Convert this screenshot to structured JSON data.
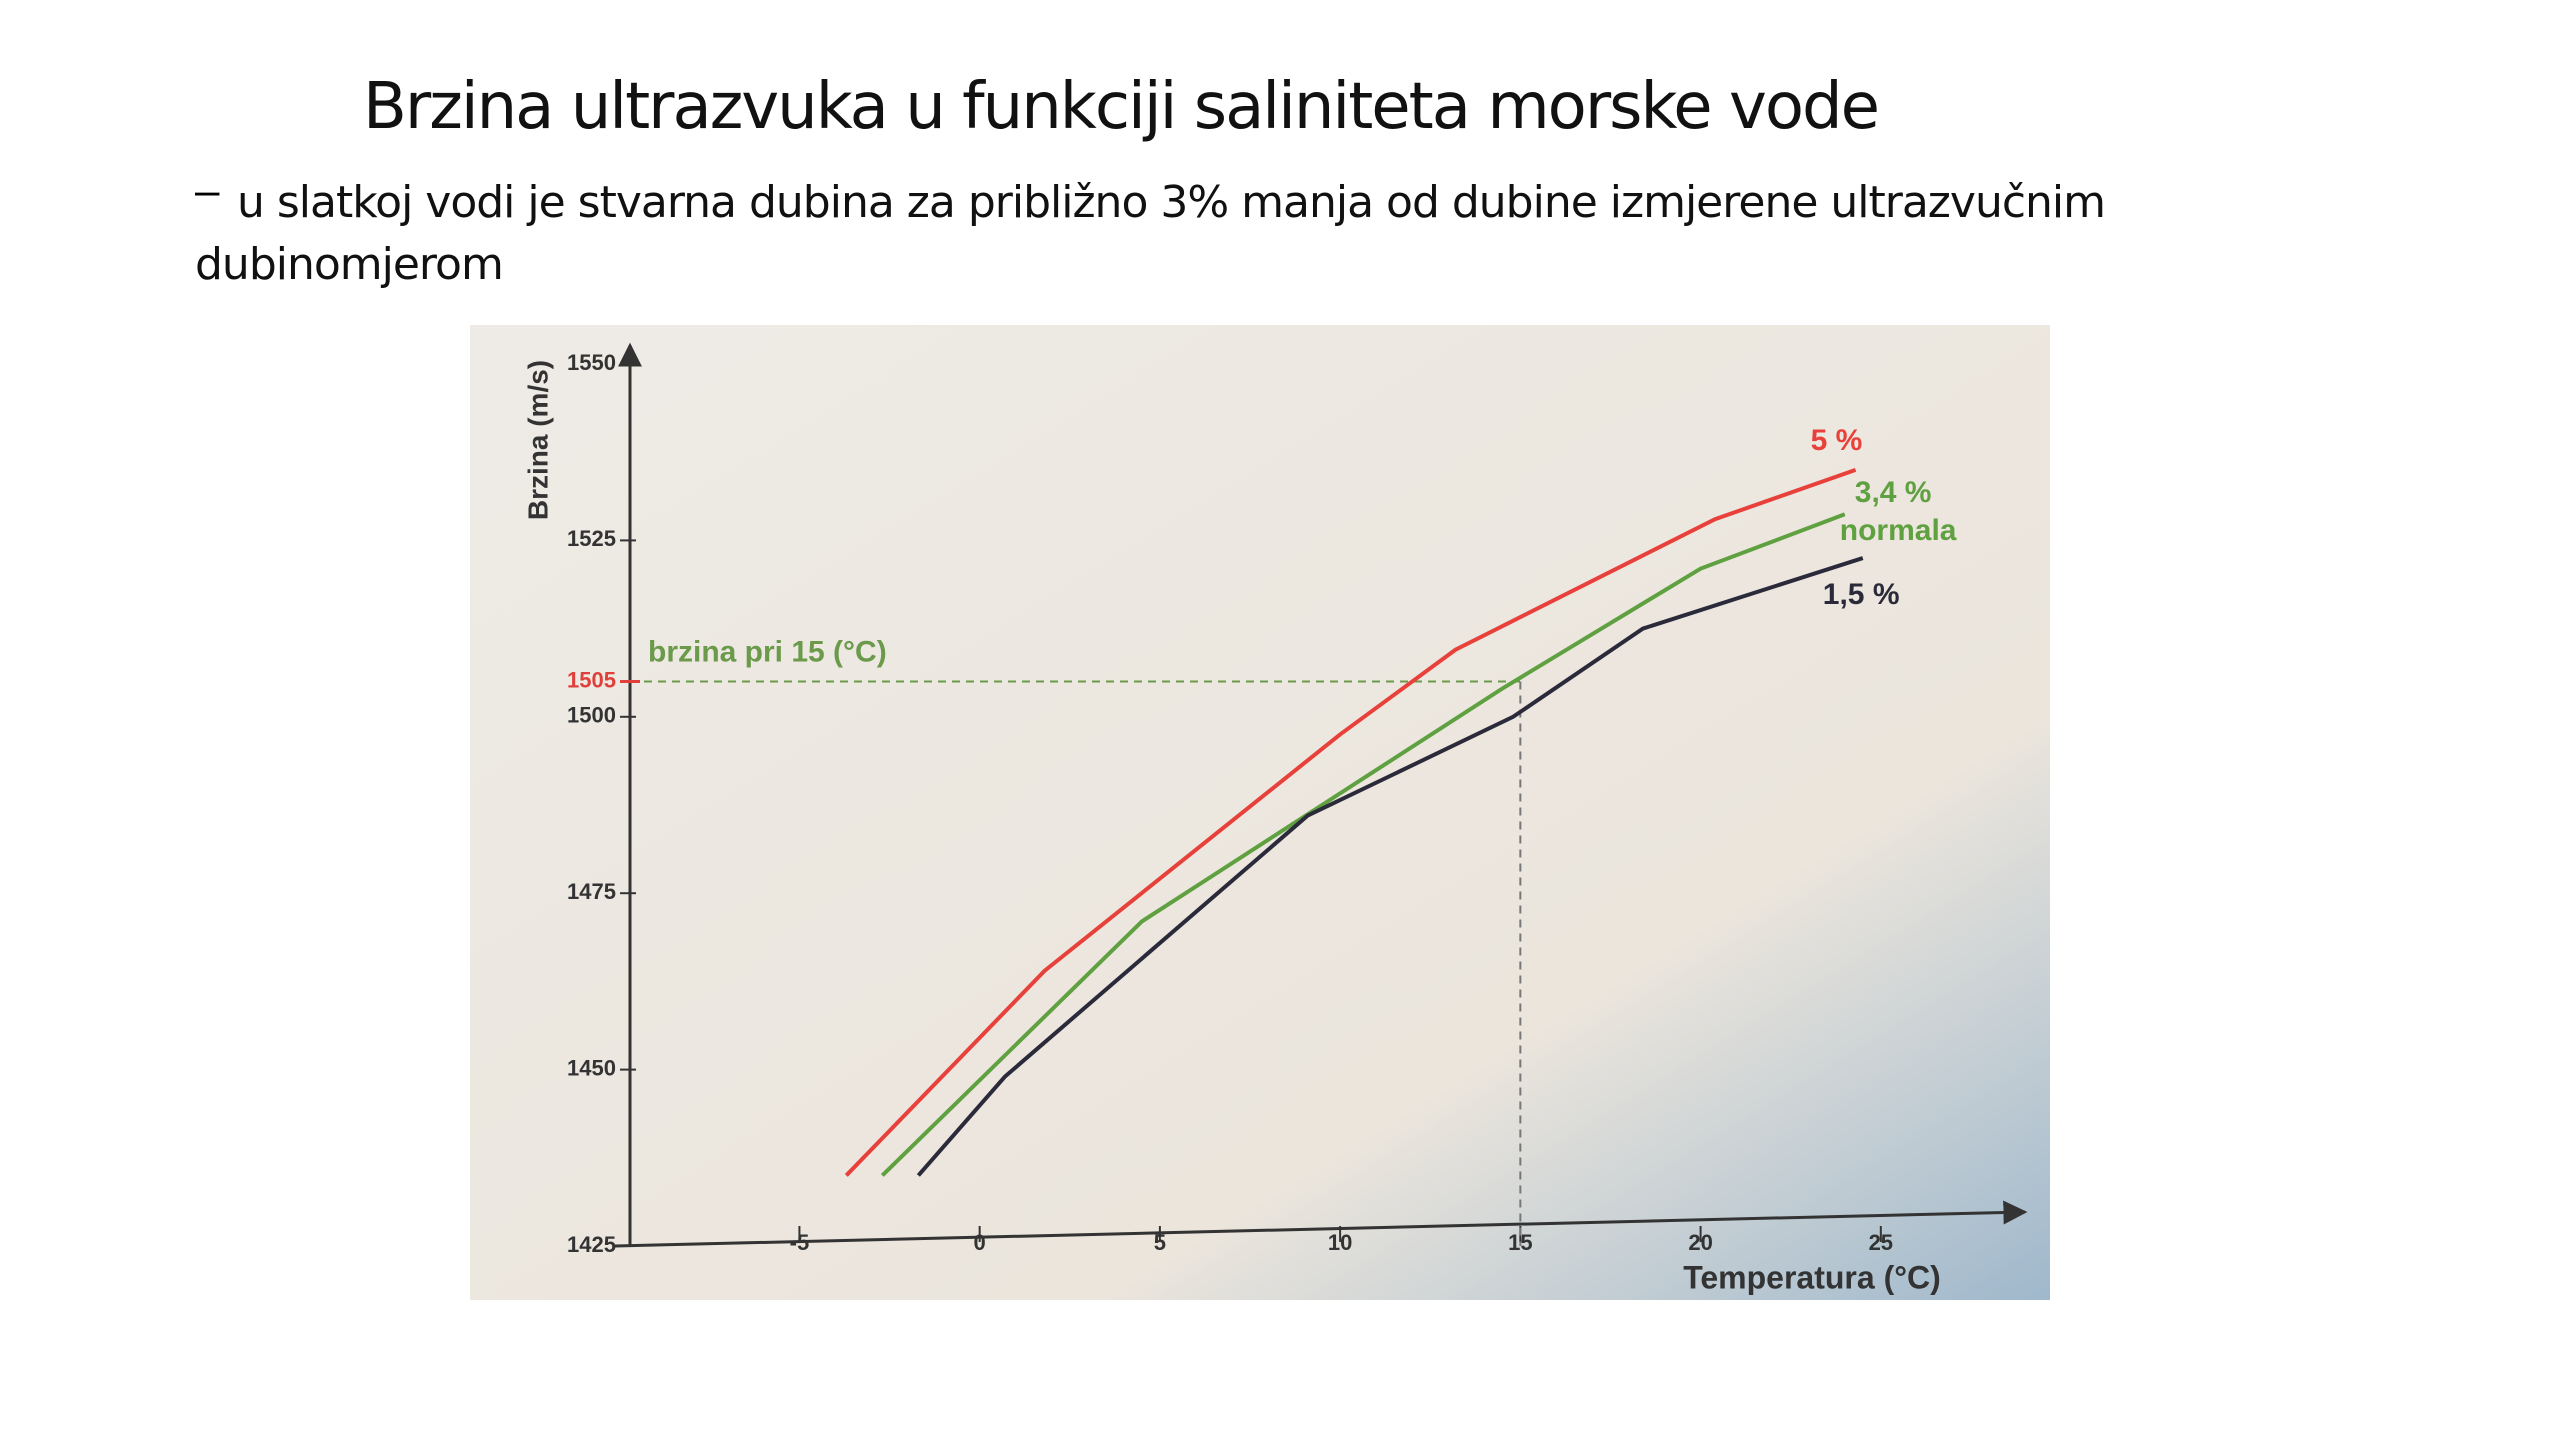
{
  "header": {
    "title": "Brzina ultrazvuka u funkciji saliniteta morske vode",
    "subtitle": "u slatkoj vodi je stvarna dubina za približno 3% manja od dubine izmjerene ultrazvučnim dubinomjerom"
  },
  "chart_data": {
    "type": "line",
    "y_label": "Brzina (m/s)",
    "x_label": "Temperatura (°C)",
    "xlim": [
      -9.7,
      29
    ],
    "ylim": [
      1425,
      1550
    ],
    "xticks": [
      -5,
      0,
      5,
      10,
      15,
      20,
      25
    ],
    "yticks": [
      1425,
      1450,
      1475,
      1500,
      1525,
      1550
    ],
    "reference": {
      "label": "brzina pri 15 (°C)",
      "x": 15,
      "y": 1505,
      "color": "#6a9a4a",
      "tick_color": "#e0403a"
    },
    "annotations": [
      "normala"
    ],
    "series": [
      {
        "name": "5 %",
        "color": "#e8403a",
        "x": [
          -3.7,
          1.8,
          10,
          13.2,
          20.4,
          24.3
        ],
        "values": [
          1435,
          1464,
          1497.5,
          1509.5,
          1528,
          1535
        ]
      },
      {
        "name": "3,4 %",
        "color": "#5fa040",
        "x": [
          -2.7,
          4.5,
          14.5,
          20,
          24
        ],
        "values": [
          1435,
          1471,
          1504,
          1521,
          1528.7
        ]
      },
      {
        "name": "1,5 %",
        "color": "#2a2a3a",
        "x": [
          -1.7,
          0.7,
          9.1,
          14.8,
          18.4,
          24.5
        ],
        "values": [
          1435,
          1449,
          1486,
          1500,
          1512.5,
          1522.5
        ]
      }
    ]
  }
}
